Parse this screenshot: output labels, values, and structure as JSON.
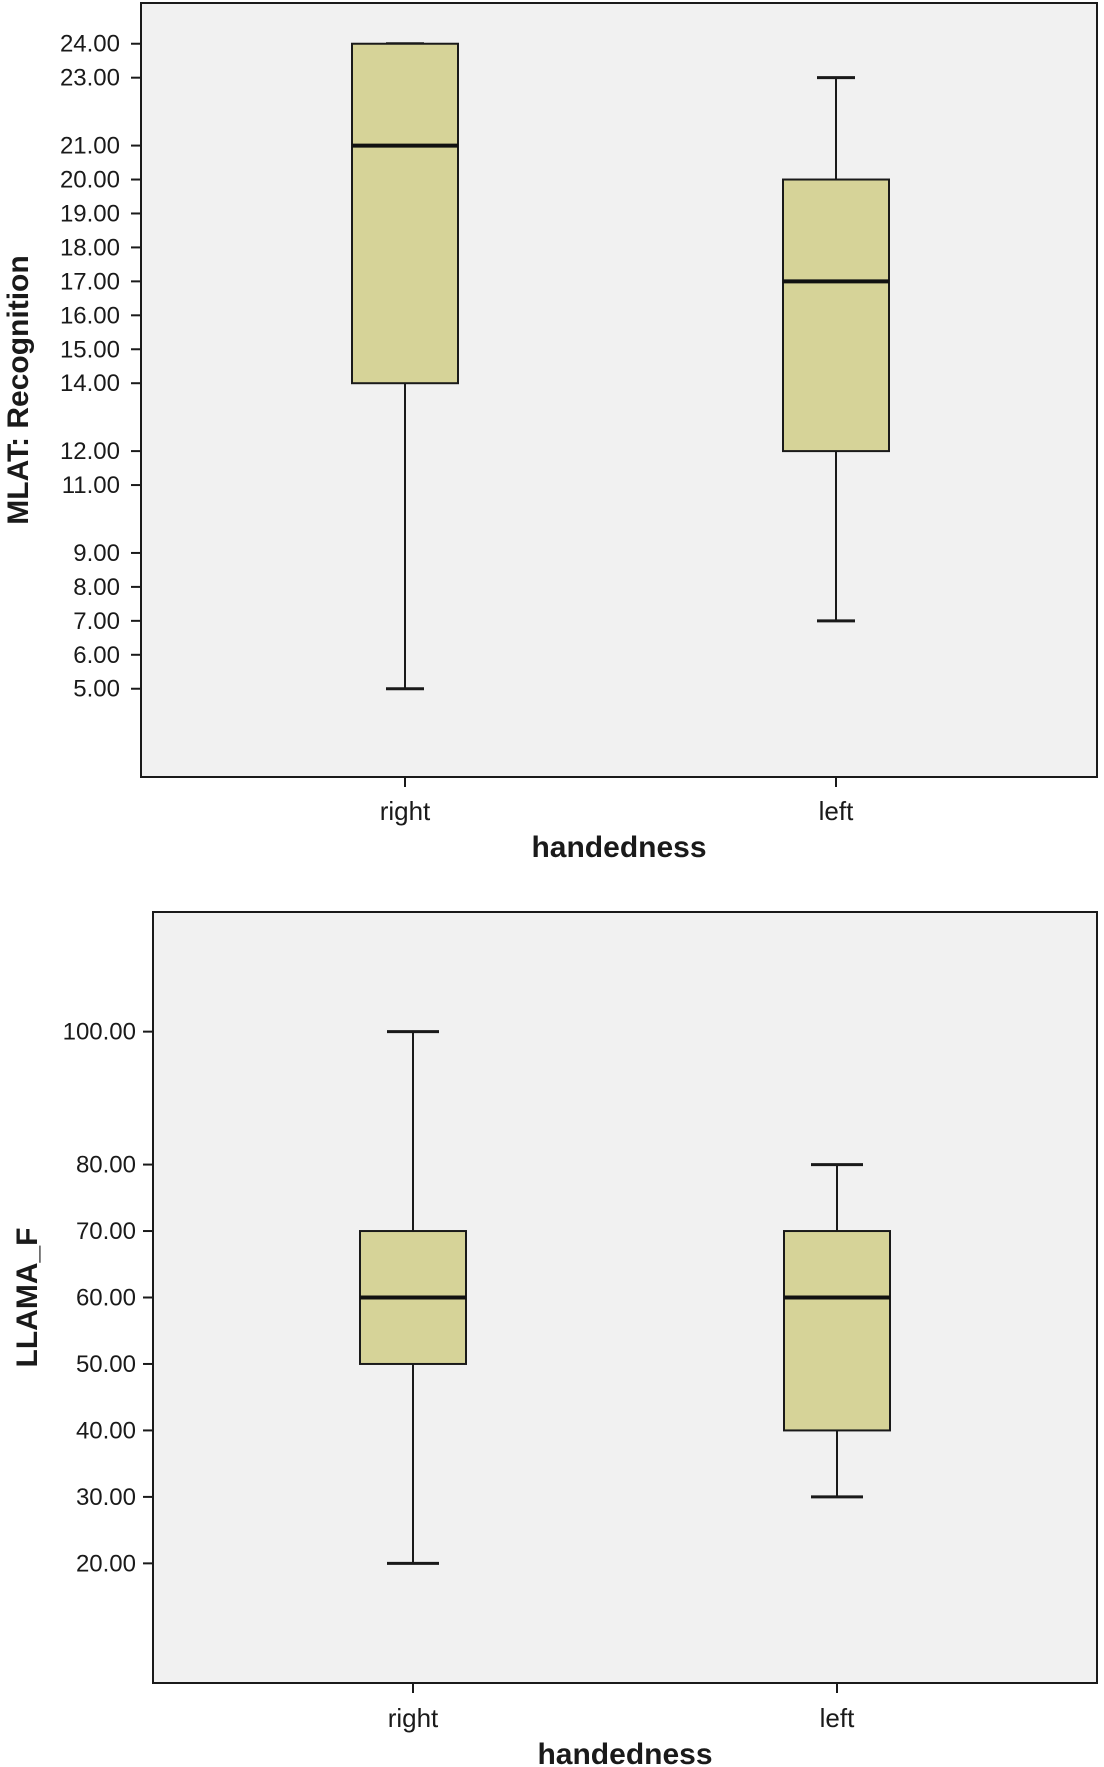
{
  "chart_data": [
    {
      "type": "box",
      "xlabel": "handedness",
      "ylabel": "MLAT: Recognition",
      "y_tick_labels": [
        "24.00",
        "23.00",
        "21.00",
        "20.00",
        "19.00",
        "18.00",
        "17.00",
        "16.00",
        "15.00",
        "14.00",
        "12.00",
        "11.00",
        "9.00",
        "8.00",
        "7.00",
        "6.00",
        "5.00"
      ],
      "ylim": [
        2.4,
        25.2
      ],
      "grid": false,
      "categories": [
        "right",
        "left"
      ],
      "series": [
        {
          "values": [
            {
              "min": 5,
              "q1": 14,
              "median": 21,
              "q3": 24,
              "max": 24
            },
            {
              "min": 7,
              "q1": 12,
              "median": 17,
              "q3": 20,
              "max": 23
            }
          ]
        }
      ],
      "box_fill": "#d6d398",
      "plot_background": "#f1f1f1"
    },
    {
      "type": "box",
      "xlabel": "handedness",
      "ylabel": "LLAMA_F",
      "y_tick_labels": [
        "100.00",
        "80.00",
        "70.00",
        "60.00",
        "50.00",
        "40.00",
        "30.00",
        "20.00"
      ],
      "ylim": [
        2.0,
        118.0
      ],
      "grid": false,
      "categories": [
        "right",
        "left"
      ],
      "series": [
        {
          "values": [
            {
              "min": 20,
              "q1": 50,
              "median": 60,
              "q3": 70,
              "max": 100
            },
            {
              "min": 30,
              "q1": 40,
              "median": 60,
              "q3": 70,
              "max": 80
            }
          ]
        }
      ],
      "box_fill": "#d6d398",
      "plot_background": "#f1f1f1"
    }
  ]
}
